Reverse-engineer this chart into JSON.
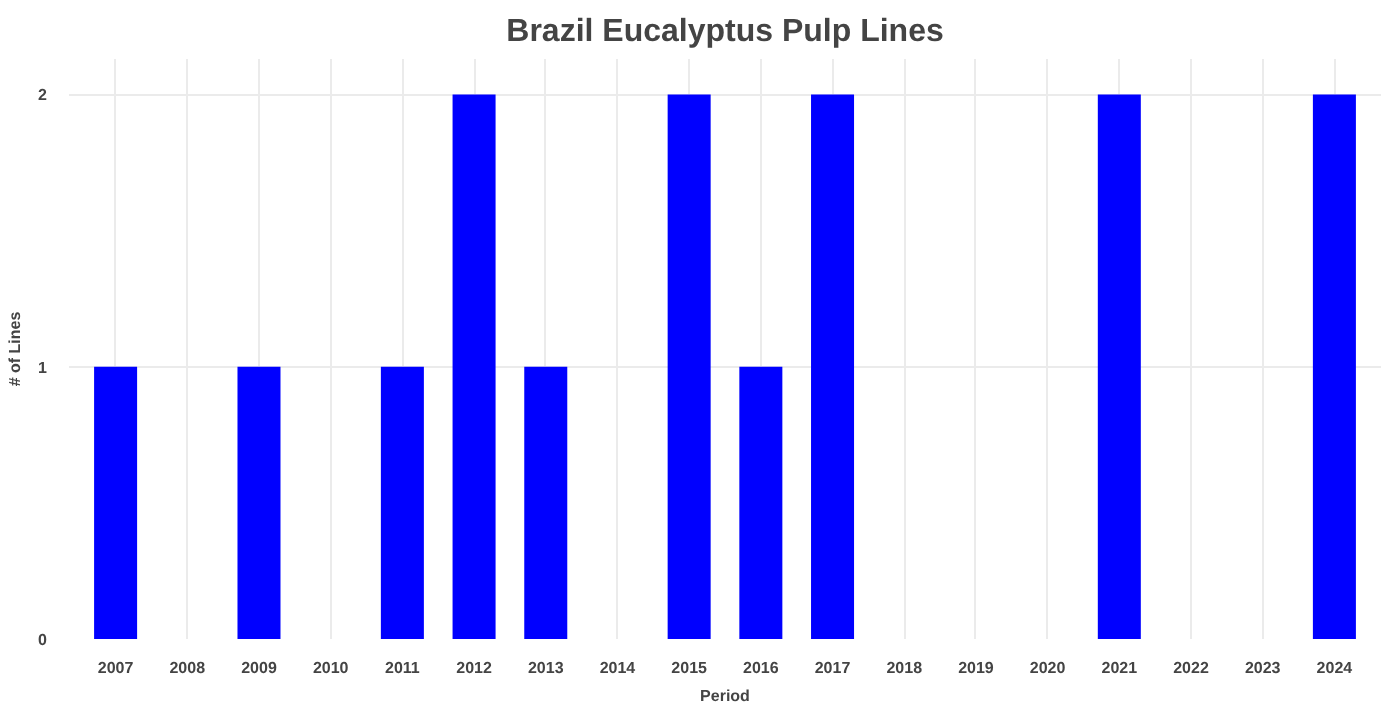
{
  "chart_data": {
    "type": "bar",
    "title": "Brazil Eucalyptus Pulp Lines",
    "xlabel": "Period",
    "ylabel": "# of Lines",
    "categories": [
      "2007",
      "2008",
      "2009",
      "2010",
      "2011",
      "2012",
      "2013",
      "2014",
      "2015",
      "2016",
      "2017",
      "2018",
      "2019",
      "2020",
      "2021",
      "2022",
      "2023",
      "2024"
    ],
    "values": [
      1,
      0,
      1,
      0,
      1,
      2,
      1,
      0,
      2,
      1,
      2,
      0,
      0,
      0,
      2,
      0,
      0,
      2
    ],
    "color": "#0000ff",
    "ylim": [
      0,
      2.13
    ],
    "yticks": [
      0,
      1,
      2
    ],
    "grid": true
  }
}
